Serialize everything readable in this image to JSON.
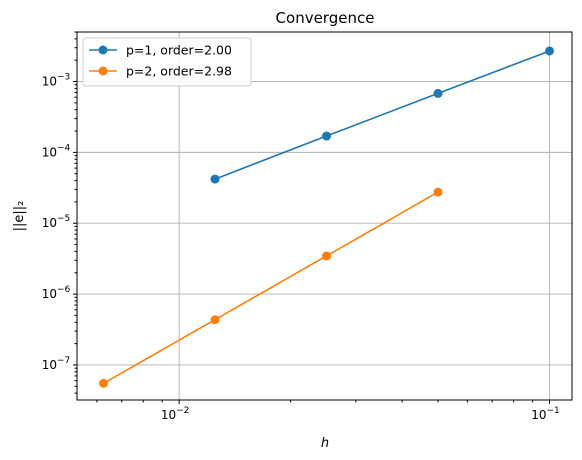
{
  "chart_data": {
    "type": "line",
    "title": "Convergence",
    "xlabel": "h",
    "ylabel": "||e||₂",
    "xscale": "log",
    "yscale": "log",
    "xlim": [
      0.0053,
      0.115
    ],
    "ylim": [
      3.2e-08,
      0.005
    ],
    "grid": true,
    "legend_position": "top-left",
    "x_ticks": [
      {
        "value": 0.01,
        "base": "10",
        "exp": "−2"
      },
      {
        "value": 0.1,
        "base": "10",
        "exp": "−1"
      }
    ],
    "y_ticks": [
      {
        "value": 1e-07,
        "base": "10",
        "exp": "−7"
      },
      {
        "value": 1e-06,
        "base": "10",
        "exp": "−6"
      },
      {
        "value": 1e-05,
        "base": "10",
        "exp": "−5"
      },
      {
        "value": 0.0001,
        "base": "10",
        "exp": "−4"
      },
      {
        "value": 0.001,
        "base": "10",
        "exp": "−3"
      }
    ],
    "series": [
      {
        "name": "p=1, order=2.00",
        "color": "#1f77b4",
        "x": [
          0.1,
          0.05,
          0.025,
          0.0125
        ],
        "y": [
          0.0027,
          0.00068,
          0.00017,
          4.2e-05
        ]
      },
      {
        "name": "p=2, order=2.98",
        "color": "#ff7f0e",
        "x": [
          0.05,
          0.025,
          0.0125,
          0.00625
        ],
        "y": [
          2.75e-05,
          3.45e-06,
          4.35e-07,
          5.5e-08
        ]
      }
    ]
  }
}
